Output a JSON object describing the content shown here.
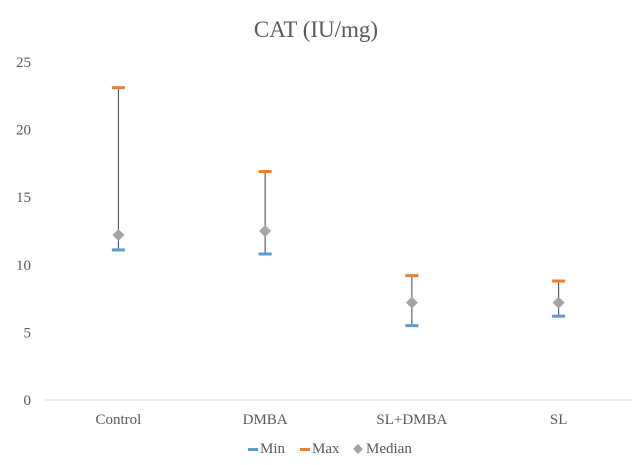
{
  "chart_data": {
    "type": "scatter",
    "title": "CAT (IU/mg)",
    "xlabel": "",
    "ylabel": "",
    "categories": [
      "Control",
      "DMBA",
      "SL+DMBA",
      "SL"
    ],
    "ylim": [
      0,
      25
    ],
    "yticks": [
      "0",
      "5",
      "10",
      "15",
      "20",
      "25"
    ],
    "ytick_values": [
      0,
      5,
      10,
      15,
      20,
      25
    ],
    "grid": false,
    "legend_position": "bottom",
    "series": [
      {
        "name": "Min",
        "marker": "dash",
        "color": "#5b9bd5",
        "values": [
          11.1,
          10.8,
          5.5,
          6.2
        ]
      },
      {
        "name": "Max",
        "marker": "dash",
        "color": "#ed7d31",
        "values": [
          23.1,
          16.9,
          9.2,
          8.8
        ]
      },
      {
        "name": "Median",
        "marker": "diamond",
        "color": "#a5a5a5",
        "values": [
          12.2,
          12.5,
          7.2,
          7.2
        ]
      }
    ],
    "range_line_color": "#404040",
    "axis_color": "#d9d9d9"
  }
}
